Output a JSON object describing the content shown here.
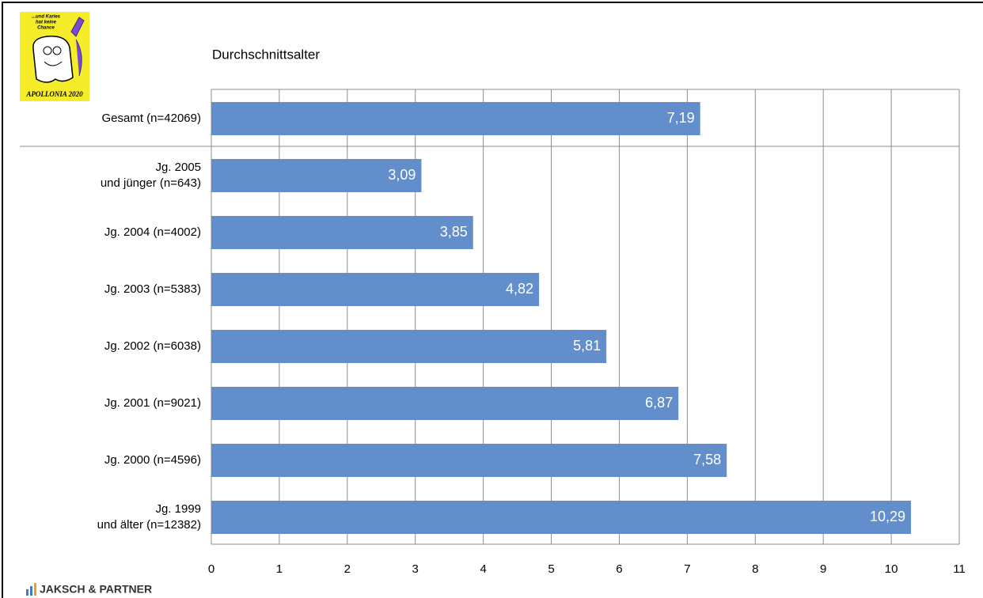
{
  "chart_data": {
    "type": "hbar",
    "title": "Durchschnittsalter",
    "categories": [
      [
        "Gesamt (n=42069)"
      ],
      [
        "Jg. 2005",
        "und jünger (n=643)"
      ],
      [
        "Jg. 2004 (n=4002)"
      ],
      [
        "Jg. 2003 (n=5383)"
      ],
      [
        "Jg. 2002 (n=6038)"
      ],
      [
        "Jg. 2001 (n=9021)"
      ],
      [
        "Jg. 2000 (n=4596)"
      ],
      [
        "Jg. 1999",
        "und älter (n=12382)"
      ]
    ],
    "values": [
      7.19,
      3.09,
      3.85,
      4.82,
      5.81,
      6.87,
      7.58,
      10.29
    ],
    "value_labels": [
      "7,19",
      "3,09",
      "3,85",
      "4,82",
      "5,81",
      "6,87",
      "7,58",
      "10,29"
    ],
    "color": "#628fcc",
    "xlim": [
      0,
      11
    ],
    "xticks": [
      0,
      1,
      2,
      3,
      4,
      5,
      6,
      7,
      8,
      9,
      10,
      11
    ],
    "grid": true
  },
  "logo": {
    "slogan": [
      "...und Karies",
      "hat keine",
      "Chance"
    ],
    "name": "APOLLONIA 2020"
  },
  "footer": {
    "brand": "JAKSCH & PARTNER"
  }
}
